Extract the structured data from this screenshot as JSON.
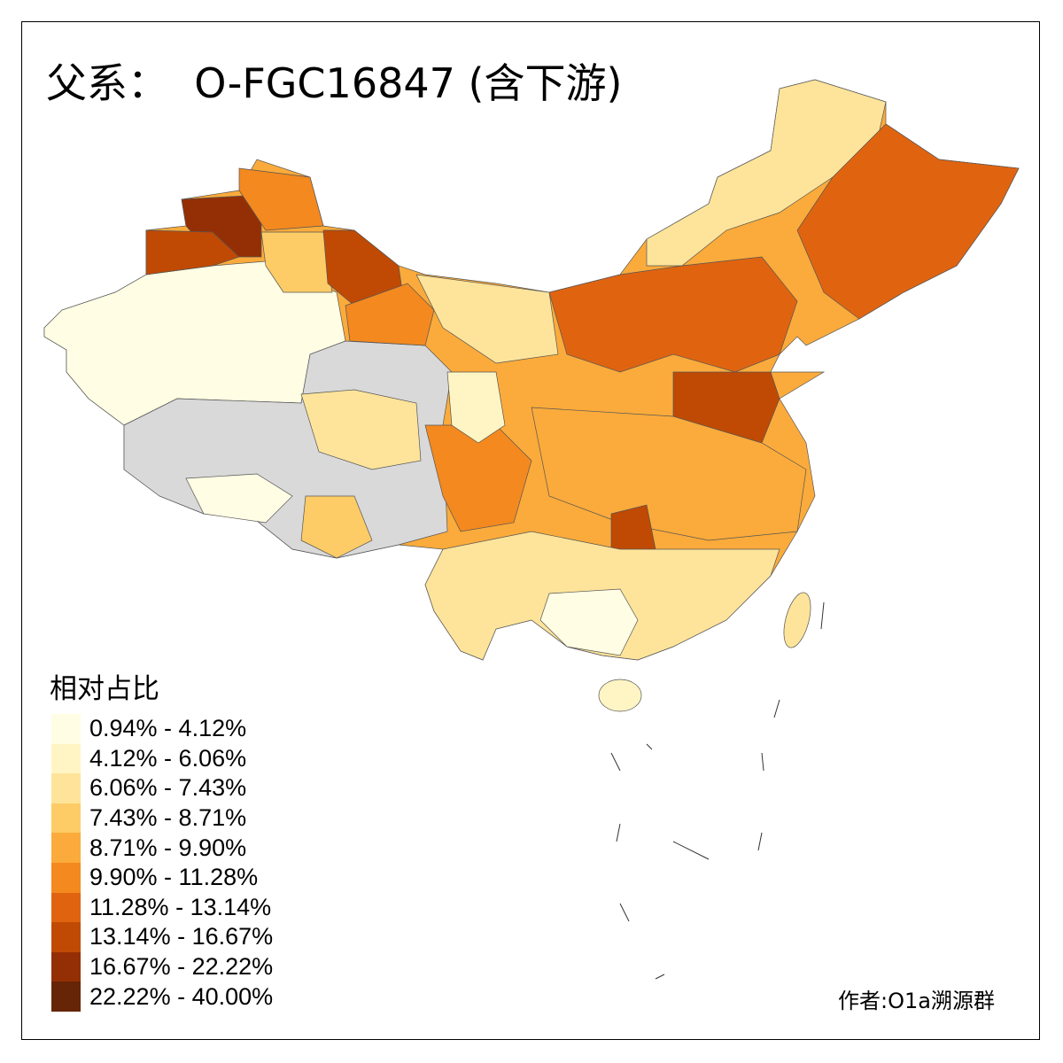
{
  "title": "父系：  O-FGC16847 (含下游)",
  "legend": {
    "title": "相对占比",
    "classes": [
      {
        "label": "0.94% - 4.12%",
        "color": "#fffde4"
      },
      {
        "label": "4.12% - 6.06%",
        "color": "#fff5c4"
      },
      {
        "label": "6.06% - 7.43%",
        "color": "#fee49a"
      },
      {
        "label": "7.43% - 8.71%",
        "color": "#fdcc66"
      },
      {
        "label": "8.71% - 9.90%",
        "color": "#fbab3b"
      },
      {
        "label": "9.90% - 11.28%",
        "color": "#f3891f"
      },
      {
        "label": "11.28% - 13.14%",
        "color": "#e06410"
      },
      {
        "label": "13.14% - 16.67%",
        "color": "#c04a04"
      },
      {
        "label": "16.67% - 22.22%",
        "color": "#942f05"
      },
      {
        "label": "22.22% - 40.00%",
        "color": "#662506"
      }
    ],
    "no_data_color": "#d9d9d9"
  },
  "credit": "作者:O1a溯源群"
}
